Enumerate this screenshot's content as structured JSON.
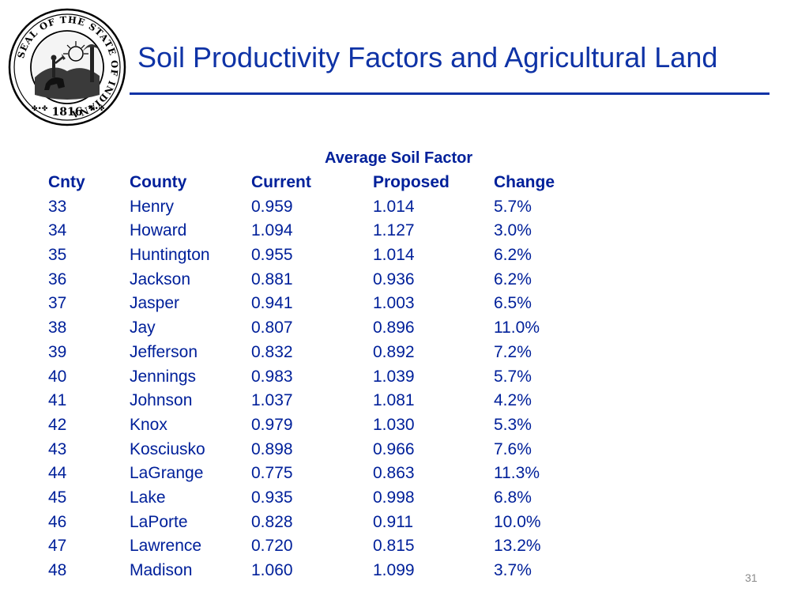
{
  "slide": {
    "title": "Soil Productivity Factors and Agricultural Land",
    "page_number": "31"
  },
  "seal": {
    "ring_text": "SEAL OF THE STATE OF INDIANA",
    "year": "1816"
  },
  "table": {
    "group_header": "Average Soil Factor",
    "headers": [
      "Cnty",
      "County",
      "Current",
      "Proposed",
      "Change"
    ],
    "rows": [
      [
        "33",
        "Henry",
        "0.959",
        "1.014",
        "5.7%"
      ],
      [
        "34",
        "Howard",
        "1.094",
        "1.127",
        "3.0%"
      ],
      [
        "35",
        "Huntington",
        "0.955",
        "1.014",
        "6.2%"
      ],
      [
        "36",
        "Jackson",
        "0.881",
        "0.936",
        "6.2%"
      ],
      [
        "37",
        "Jasper",
        "0.941",
        "1.003",
        "6.5%"
      ],
      [
        "38",
        "Jay",
        "0.807",
        "0.896",
        "11.0%"
      ],
      [
        "39",
        "Jefferson",
        "0.832",
        "0.892",
        "7.2%"
      ],
      [
        "40",
        "Jennings",
        "0.983",
        "1.039",
        "5.7%"
      ],
      [
        "41",
        "Johnson",
        "1.037",
        "1.081",
        "4.2%"
      ],
      [
        "42",
        "Knox",
        "0.979",
        "1.030",
        "5.3%"
      ],
      [
        "43",
        "Kosciusko",
        "0.898",
        "0.966",
        "7.6%"
      ],
      [
        "44",
        "LaGrange",
        "0.775",
        "0.863",
        "11.3%"
      ],
      [
        "45",
        "Lake",
        "0.935",
        "0.998",
        "6.8%"
      ],
      [
        "46",
        "LaPorte",
        "0.828",
        "0.911",
        "10.0%"
      ],
      [
        "47",
        "Lawrence",
        "0.720",
        "0.815",
        "13.2%"
      ],
      [
        "48",
        "Madison",
        "1.060",
        "1.099",
        "3.7%"
      ]
    ]
  },
  "colors": {
    "title": "#0f33a6",
    "table_text": "#00209a",
    "page_number": "#8a8a8a"
  }
}
